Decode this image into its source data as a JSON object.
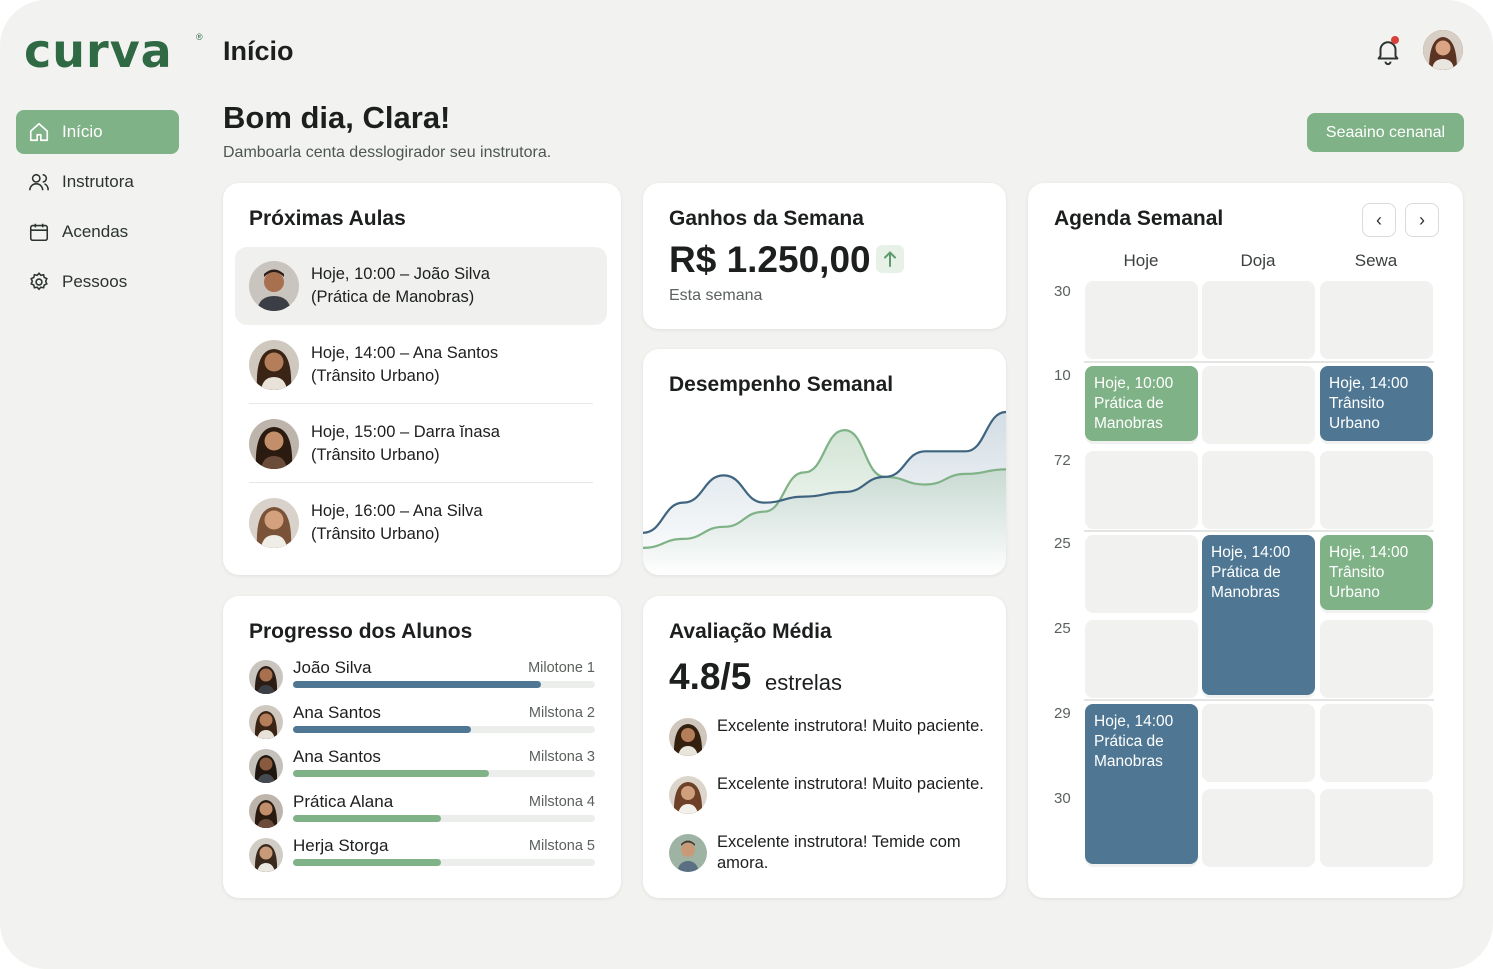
{
  "app": {
    "logo": "curva",
    "page_title": "Início",
    "greeting": "Bom dia, Clara!",
    "greeting_sub": "Damboarla centa desslogirador seu instrutora.",
    "top_button": "Seaaino cenanal"
  },
  "colors": {
    "accent_green": "#7fb286",
    "accent_blue": "#4f7793",
    "brand": "#2f6a45"
  },
  "sidebar": {
    "items": [
      {
        "label": "Início",
        "icon": "home-icon",
        "active": true
      },
      {
        "label": "Instrutora",
        "icon": "users-icon",
        "active": false
      },
      {
        "label": "Acendas",
        "icon": "calendar-icon",
        "active": false
      },
      {
        "label": "Pessoos",
        "icon": "gear-icon",
        "active": false
      }
    ]
  },
  "upcoming": {
    "title": "Próximas Aulas",
    "lessons": [
      {
        "line1": "Hoje, 10:00 – João Silva",
        "line2": "(Prática de Manobras)"
      },
      {
        "line1": "Hoje, 14:00 – Ana Santos",
        "line2": "(Trânsito Urbano)"
      },
      {
        "line1": "Hoje, 15:00 – Dar͏ra ĭnasa",
        "line2": "(Trânsito Urbano)"
      },
      {
        "line1": "Hoje, 16:00 – Ana Silva",
        "line2": "(Trânsito Urbano)"
      }
    ]
  },
  "earnings": {
    "title": "Ganhos da Semana",
    "value": "R$ 1.250,00",
    "sub": "Esta semana"
  },
  "performance": {
    "title": "Desempenho Semanal",
    "series_green": [
      0.08,
      0.14,
      0.22,
      0.32,
      0.58,
      0.86,
      0.55,
      0.5,
      0.57,
      0.6
    ],
    "series_blue": [
      0.18,
      0.38,
      0.56,
      0.38,
      0.42,
      0.45,
      0.55,
      0.72,
      0.72,
      0.98
    ]
  },
  "progress": {
    "title": "Progresso dos Alunos",
    "students": [
      {
        "name": "João Silva",
        "milestone": "Milotone 1",
        "progress": 0.82,
        "color": "#4f7793"
      },
      {
        "name": "Ana Santos",
        "milestone": "Milstona 2",
        "progress": 0.59,
        "color": "#4f7793"
      },
      {
        "name": "Ana Santos",
        "milestone": "Milstona 3",
        "progress": 0.65,
        "color": "#7fb286"
      },
      {
        "name": "Prática Alana",
        "milestone": "Milstona 4",
        "progress": 0.49,
        "color": "#7fb286"
      },
      {
        "name": "Herja Storga",
        "milestone": "Milstona 5",
        "progress": 0.49,
        "color": "#7fb286"
      }
    ]
  },
  "rating": {
    "title": "Avaliação Média",
    "value": "4.8/5",
    "word": "estrelas",
    "reviews": [
      "Excelente instrutora! Muito paciente.",
      "Excelente instrutora! Muito paciente.",
      "Excelente instrutora! Temide com amora."
    ]
  },
  "agenda": {
    "title": "Agenda Semanal",
    "days": [
      "Hoje",
      "Doja",
      "Sewa"
    ],
    "times": [
      "30",
      "10",
      "72",
      "25",
      "25",
      "29",
      "30"
    ],
    "events": [
      {
        "text": "Hoje, 10:00 Prática de Manobras"
      },
      {
        "text": "Hoje, 14:00 Trânsito Urbano"
      },
      {
        "text": "Hoje, 14:00 Prática de Manobras"
      },
      {
        "text": "Hoje, 14:00 Trânsito Urbano"
      },
      {
        "text": "Hoje, 14:00 Prática de Manobras"
      }
    ]
  }
}
